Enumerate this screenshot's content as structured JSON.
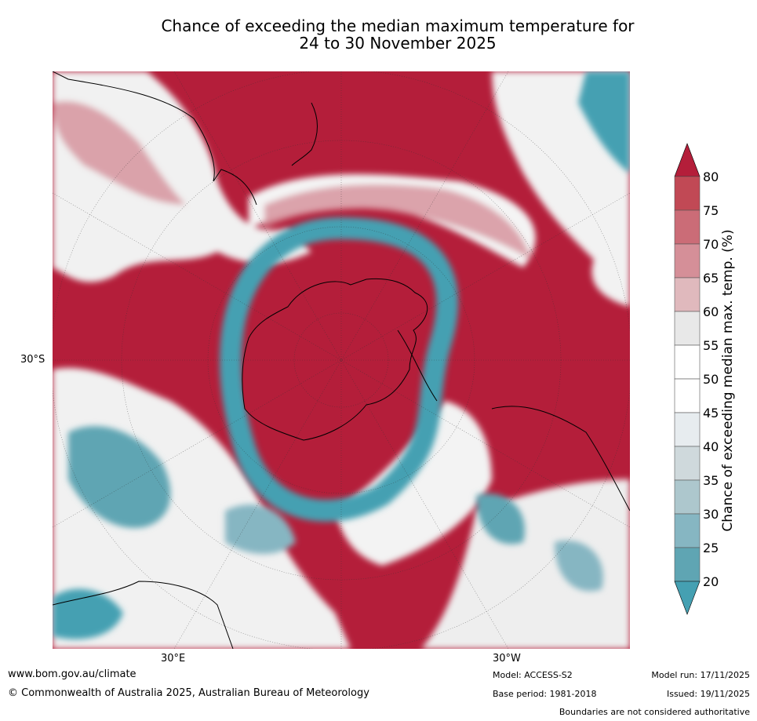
{
  "title": {
    "line1": "Chance of exceeding the median maximum temperature for",
    "line2": "24 to 30 November 2025"
  },
  "axis_labels": {
    "lat": "30°S",
    "lon_left": "30°E",
    "lon_right": "30°W"
  },
  "colorbar": {
    "label": "Chance of exceeding median max. temp. (%)",
    "ticks": [
      "80",
      "75",
      "70",
      "65",
      "60",
      "55",
      "50",
      "45",
      "40",
      "35",
      "30",
      "25",
      "20"
    ],
    "colors": [
      "#b41e3a",
      "#c14955",
      "#cb6c77",
      "#d58f98",
      "#e0b9bd",
      "#e8e8e8",
      "#ffffff",
      "#ffffff",
      "#e7ecef",
      "#cfd9dc",
      "#adc7cd",
      "#86b6c2",
      "#5fa5b3",
      "#45a0b2"
    ]
  },
  "footer": {
    "url": "www.bom.gov.au/climate",
    "copyright": "© Commonwealth of Australia 2025, Australian Bureau of Meteorology",
    "model": "Model: ACCESS-S2",
    "base_period": "Base period: 1981-2018",
    "model_run": "Model run: 17/11/2025",
    "issued": "Issued: 19/11/2025",
    "disclaimer": "Boundaries are not considered authoritative"
  }
}
